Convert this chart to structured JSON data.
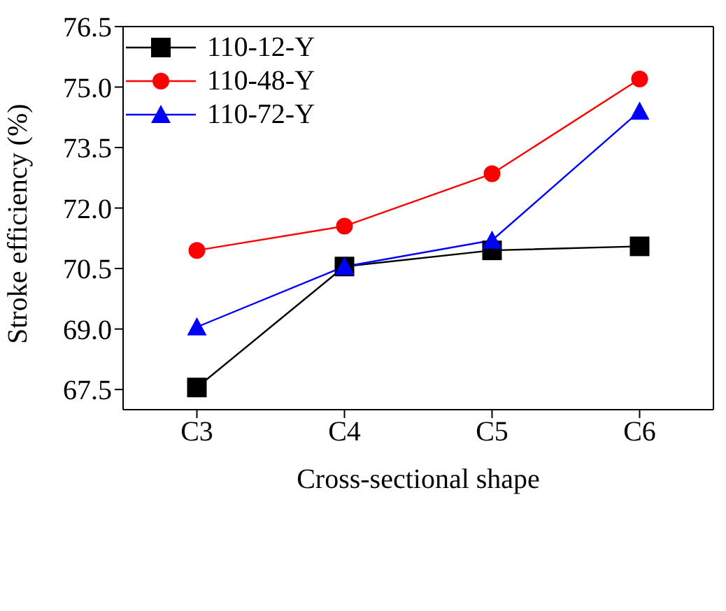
{
  "chart_data": {
    "type": "line",
    "xlabel": "Cross-sectional shape",
    "ylabel": "Stroke efficiency (%)",
    "categories": [
      "C3",
      "C4",
      "C5",
      "C6"
    ],
    "series": [
      {
        "name": "110-12-Y",
        "color": "#000000",
        "marker": "square",
        "values": [
          67.55,
          70.55,
          70.95,
          71.05
        ]
      },
      {
        "name": "110-48-Y",
        "color": "#ff0000",
        "marker": "circle",
        "values": [
          70.95,
          71.55,
          72.85,
          75.2
        ]
      },
      {
        "name": "110-72-Y",
        "color": "#0000ff",
        "marker": "triangle",
        "values": [
          69.05,
          70.55,
          71.2,
          74.4
        ]
      }
    ],
    "ylim": [
      67.0,
      76.5
    ],
    "yticks": [
      {
        "value": 67.5,
        "label": "67.5"
      },
      {
        "value": 69,
        "label": "69.0"
      },
      {
        "value": 70.5,
        "label": "70.5"
      },
      {
        "value": 72,
        "label": "72.0"
      },
      {
        "value": 73.5,
        "label": "73.5"
      },
      {
        "value": 75,
        "label": "75.0"
      },
      {
        "value": 76.5,
        "label": "76.5"
      }
    ],
    "grid": false,
    "legend": "top left",
    "line_style": "solid"
  }
}
